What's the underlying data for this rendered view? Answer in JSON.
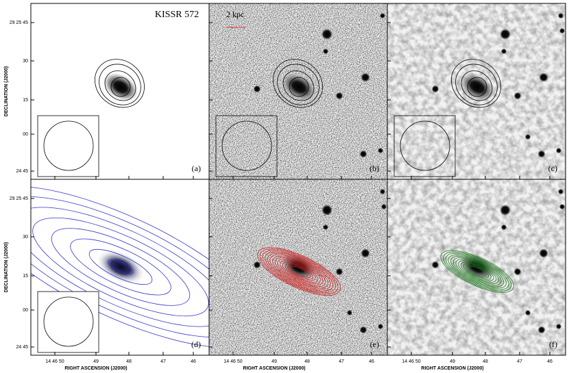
{
  "title": "KISSR 572",
  "scale_bar": "2 kpc",
  "panels": [
    {
      "label": "(a)"
    },
    {
      "label": "(b)"
    },
    {
      "label": "(c)"
    },
    {
      "label": "(d)"
    },
    {
      "label": "(e)"
    },
    {
      "label": "(f)"
    }
  ],
  "y_axis": {
    "label": "DECLINATION (J2000)",
    "ticks": [
      "29 25 45",
      "30",
      "15",
      "00",
      "24 45"
    ]
  },
  "x_axis": {
    "label": "RIGHT ASCENSION (J2000)",
    "ticks": [
      "14 46 50",
      "49",
      "48",
      "47",
      "46"
    ]
  }
}
